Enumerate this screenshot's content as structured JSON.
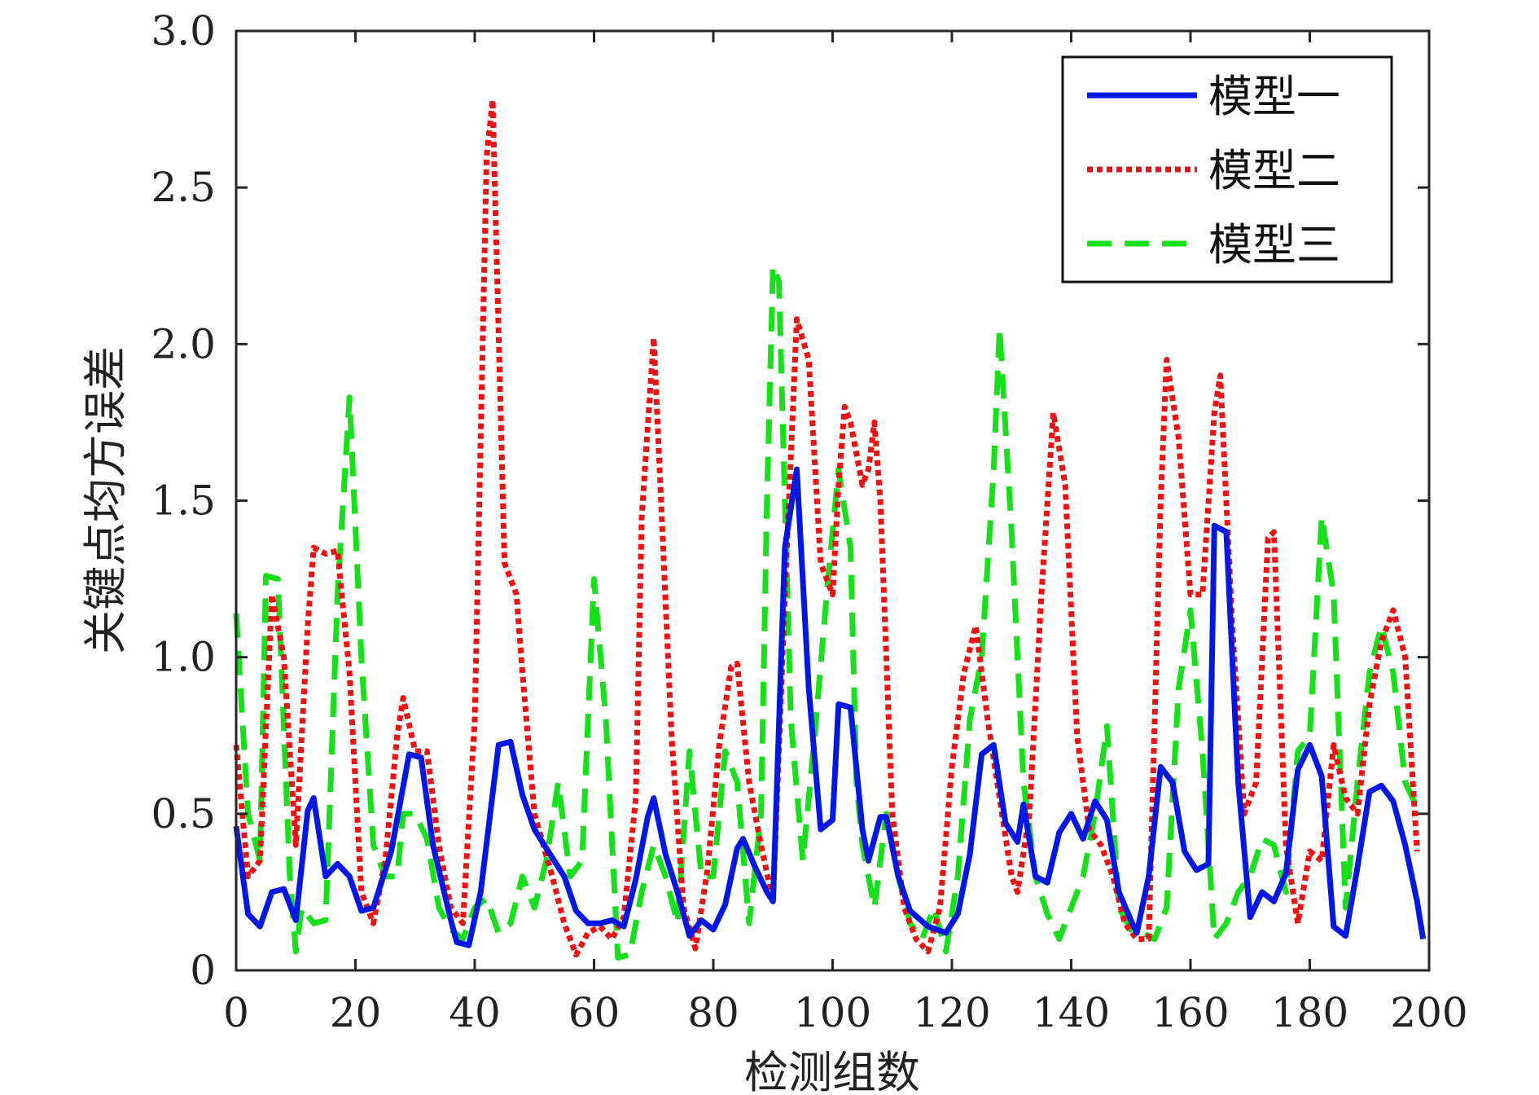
{
  "chart_data": {
    "type": "line",
    "title": "",
    "xlabel": "检测组数",
    "ylabel": "关键点均方误差",
    "xlim": [
      0,
      200
    ],
    "ylim": [
      0,
      3.0
    ],
    "xticks": [
      "0",
      "20",
      "40",
      "60",
      "80",
      "100",
      "120",
      "140",
      "160",
      "180",
      "200"
    ],
    "yticks": [
      "0",
      "0.5",
      "1.0",
      "1.5",
      "2.0",
      "2.5",
      "3.0"
    ],
    "grid": false,
    "legend_position": "top-right",
    "series": [
      {
        "name": "模型一",
        "color": "#0018e6",
        "style": "solid",
        "points": [
          [
            0,
            0.46
          ],
          [
            2,
            0.18
          ],
          [
            4,
            0.14
          ],
          [
            6,
            0.25
          ],
          [
            8,
            0.26
          ],
          [
            10,
            0.16
          ],
          [
            12,
            0.51
          ],
          [
            13,
            0.55
          ],
          [
            15,
            0.3
          ],
          [
            17,
            0.34
          ],
          [
            19,
            0.3
          ],
          [
            21,
            0.19
          ],
          [
            23,
            0.2
          ],
          [
            26,
            0.38
          ],
          [
            29,
            0.69
          ],
          [
            31,
            0.68
          ],
          [
            33,
            0.4
          ],
          [
            36,
            0.16
          ],
          [
            37,
            0.09
          ],
          [
            39,
            0.08
          ],
          [
            41,
            0.25
          ],
          [
            44,
            0.72
          ],
          [
            46,
            0.73
          ],
          [
            48,
            0.56
          ],
          [
            50,
            0.45
          ],
          [
            53,
            0.36
          ],
          [
            55,
            0.3
          ],
          [
            57,
            0.19
          ],
          [
            59,
            0.15
          ],
          [
            61,
            0.15
          ],
          [
            63,
            0.16
          ],
          [
            65,
            0.14
          ],
          [
            67,
            0.29
          ],
          [
            69,
            0.49
          ],
          [
            70,
            0.55
          ],
          [
            72,
            0.37
          ],
          [
            74,
            0.25
          ],
          [
            76,
            0.11
          ],
          [
            78,
            0.16
          ],
          [
            80,
            0.13
          ],
          [
            82,
            0.21
          ],
          [
            84,
            0.39
          ],
          [
            85,
            0.42
          ],
          [
            87,
            0.33
          ],
          [
            89,
            0.25
          ],
          [
            90,
            0.22
          ],
          [
            92,
            1.35
          ],
          [
            94,
            1.6
          ],
          [
            96,
            0.9
          ],
          [
            98,
            0.45
          ],
          [
            100,
            0.48
          ],
          [
            101,
            0.85
          ],
          [
            103,
            0.84
          ],
          [
            105,
            0.45
          ],
          [
            106,
            0.35
          ],
          [
            108,
            0.49
          ],
          [
            109,
            0.49
          ],
          [
            111,
            0.3
          ],
          [
            113,
            0.19
          ],
          [
            116,
            0.14
          ],
          [
            119,
            0.12
          ],
          [
            121,
            0.18
          ],
          [
            123,
            0.37
          ],
          [
            125,
            0.69
          ],
          [
            127,
            0.72
          ],
          [
            129,
            0.47
          ],
          [
            131,
            0.41
          ],
          [
            132,
            0.53
          ],
          [
            134,
            0.3
          ],
          [
            136,
            0.28
          ],
          [
            138,
            0.44
          ],
          [
            140,
            0.5
          ],
          [
            142,
            0.42
          ],
          [
            144,
            0.54
          ],
          [
            146,
            0.48
          ],
          [
            148,
            0.25
          ],
          [
            150,
            0.16
          ],
          [
            151,
            0.12
          ],
          [
            153,
            0.3
          ],
          [
            155,
            0.65
          ],
          [
            157,
            0.6
          ],
          [
            159,
            0.38
          ],
          [
            161,
            0.32
          ],
          [
            163,
            0.34
          ],
          [
            164,
            1.42
          ],
          [
            166,
            1.4
          ],
          [
            168,
            0.6
          ],
          [
            170,
            0.17
          ],
          [
            172,
            0.25
          ],
          [
            174,
            0.22
          ],
          [
            176,
            0.31
          ],
          [
            178,
            0.64
          ],
          [
            180,
            0.72
          ],
          [
            182,
            0.62
          ],
          [
            184,
            0.14
          ],
          [
            186,
            0.11
          ],
          [
            188,
            0.33
          ],
          [
            190,
            0.57
          ],
          [
            192,
            0.59
          ],
          [
            194,
            0.54
          ],
          [
            196,
            0.4
          ],
          [
            198,
            0.22
          ],
          [
            199,
            0.1
          ]
        ]
      },
      {
        "name": "模型二",
        "color": "#ee1111",
        "style": "dotted",
        "points": [
          [
            0,
            0.72
          ],
          [
            2,
            0.3
          ],
          [
            4,
            0.35
          ],
          [
            6,
            1.2
          ],
          [
            8,
            1.0
          ],
          [
            10,
            0.4
          ],
          [
            12,
            1.1
          ],
          [
            13,
            1.35
          ],
          [
            15,
            1.33
          ],
          [
            17,
            1.34
          ],
          [
            19,
            0.95
          ],
          [
            21,
            0.25
          ],
          [
            23,
            0.15
          ],
          [
            25,
            0.35
          ],
          [
            27,
            0.75
          ],
          [
            28,
            0.87
          ],
          [
            30,
            0.7
          ],
          [
            32,
            0.7
          ],
          [
            34,
            0.4
          ],
          [
            36,
            0.2
          ],
          [
            38,
            0.15
          ],
          [
            40,
            0.8
          ],
          [
            42,
            2.6
          ],
          [
            43,
            2.78
          ],
          [
            45,
            1.3
          ],
          [
            47,
            1.2
          ],
          [
            48,
            0.95
          ],
          [
            50,
            0.5
          ],
          [
            53,
            0.3
          ],
          [
            55,
            0.15
          ],
          [
            57,
            0.05
          ],
          [
            59,
            0.12
          ],
          [
            61,
            0.14
          ],
          [
            63,
            0.1
          ],
          [
            65,
            0.17
          ],
          [
            67,
            0.55
          ],
          [
            68,
            1.45
          ],
          [
            70,
            2.02
          ],
          [
            71,
            1.6
          ],
          [
            73,
            0.75
          ],
          [
            75,
            0.2
          ],
          [
            77,
            0.07
          ],
          [
            79,
            0.32
          ],
          [
            81,
            0.72
          ],
          [
            83,
            0.97
          ],
          [
            84,
            0.98
          ],
          [
            86,
            0.6
          ],
          [
            88,
            0.4
          ],
          [
            90,
            0.22
          ],
          [
            92,
            1.2
          ],
          [
            94,
            2.08
          ],
          [
            96,
            1.95
          ],
          [
            98,
            1.3
          ],
          [
            100,
            1.2
          ],
          [
            101,
            1.55
          ],
          [
            102,
            1.8
          ],
          [
            103,
            1.75
          ],
          [
            105,
            1.55
          ],
          [
            106,
            1.6
          ],
          [
            107,
            1.75
          ],
          [
            108,
            1.5
          ],
          [
            110,
            0.5
          ],
          [
            112,
            0.2
          ],
          [
            114,
            0.1
          ],
          [
            116,
            0.06
          ],
          [
            118,
            0.2
          ],
          [
            120,
            0.65
          ],
          [
            122,
            0.95
          ],
          [
            124,
            1.1
          ],
          [
            126,
            0.8
          ],
          [
            128,
            0.55
          ],
          [
            130,
            0.3
          ],
          [
            131,
            0.25
          ],
          [
            133,
            0.5
          ],
          [
            135,
            1.2
          ],
          [
            137,
            1.78
          ],
          [
            139,
            1.55
          ],
          [
            141,
            0.75
          ],
          [
            143,
            0.45
          ],
          [
            145,
            0.4
          ],
          [
            147,
            0.3
          ],
          [
            149,
            0.15
          ],
          [
            151,
            0.1
          ],
          [
            153,
            0.1
          ],
          [
            155,
            1.5
          ],
          [
            156,
            1.95
          ],
          [
            158,
            1.7
          ],
          [
            160,
            1.2
          ],
          [
            162,
            1.2
          ],
          [
            164,
            1.78
          ],
          [
            165,
            1.9
          ],
          [
            167,
            1.1
          ],
          [
            169,
            0.5
          ],
          [
            171,
            0.6
          ],
          [
            173,
            1.38
          ],
          [
            174,
            1.4
          ],
          [
            176,
            0.4
          ],
          [
            178,
            0.15
          ],
          [
            180,
            0.38
          ],
          [
            182,
            0.35
          ],
          [
            184,
            0.72
          ],
          [
            186,
            0.55
          ],
          [
            188,
            0.5
          ],
          [
            190,
            0.85
          ],
          [
            192,
            1.05
          ],
          [
            194,
            1.15
          ],
          [
            196,
            1.0
          ],
          [
            198,
            0.38
          ]
        ]
      },
      {
        "name": "模型三",
        "color": "#16e01a",
        "style": "dashed",
        "points": [
          [
            0,
            1.14
          ],
          [
            2,
            0.5
          ],
          [
            4,
            0.35
          ],
          [
            5,
            1.26
          ],
          [
            7,
            1.25
          ],
          [
            9,
            0.3
          ],
          [
            10,
            0.06
          ],
          [
            11,
            0.2
          ],
          [
            13,
            0.15
          ],
          [
            15,
            0.16
          ],
          [
            17,
            1.2
          ],
          [
            19,
            1.83
          ],
          [
            21,
            1.0
          ],
          [
            23,
            0.4
          ],
          [
            25,
            0.3
          ],
          [
            27,
            0.3
          ],
          [
            28,
            0.5
          ],
          [
            30,
            0.5
          ],
          [
            32,
            0.42
          ],
          [
            34,
            0.2
          ],
          [
            36,
            0.13
          ],
          [
            38,
            0.1
          ],
          [
            40,
            0.2
          ],
          [
            42,
            0.23
          ],
          [
            44,
            0.12
          ],
          [
            46,
            0.15
          ],
          [
            48,
            0.3
          ],
          [
            50,
            0.2
          ],
          [
            52,
            0.35
          ],
          [
            54,
            0.6
          ],
          [
            56,
            0.3
          ],
          [
            58,
            0.35
          ],
          [
            60,
            1.25
          ],
          [
            62,
            0.8
          ],
          [
            64,
            0.04
          ],
          [
            66,
            0.05
          ],
          [
            68,
            0.25
          ],
          [
            70,
            0.4
          ],
          [
            72,
            0.3
          ],
          [
            74,
            0.15
          ],
          [
            76,
            0.7
          ],
          [
            78,
            0.3
          ],
          [
            80,
            0.3
          ],
          [
            82,
            0.7
          ],
          [
            84,
            0.6
          ],
          [
            86,
            0.15
          ],
          [
            88,
            0.5
          ],
          [
            89,
            1.5
          ],
          [
            90,
            2.25
          ],
          [
            91,
            2.2
          ],
          [
            93,
            0.8
          ],
          [
            95,
            0.35
          ],
          [
            97,
            0.75
          ],
          [
            99,
            1.2
          ],
          [
            101,
            1.6
          ],
          [
            103,
            1.35
          ],
          [
            104,
            0.6
          ],
          [
            105,
            0.4
          ],
          [
            107,
            0.2
          ],
          [
            109,
            0.5
          ],
          [
            111,
            0.3
          ],
          [
            113,
            0.15
          ],
          [
            115,
            0.1
          ],
          [
            117,
            0.2
          ],
          [
            119,
            0.06
          ],
          [
            121,
            0.3
          ],
          [
            123,
            0.8
          ],
          [
            125,
            1.0
          ],
          [
            127,
            1.6
          ],
          [
            128,
            2.05
          ],
          [
            130,
            1.4
          ],
          [
            132,
            0.6
          ],
          [
            134,
            0.3
          ],
          [
            136,
            0.18
          ],
          [
            138,
            0.1
          ],
          [
            140,
            0.2
          ],
          [
            142,
            0.3
          ],
          [
            144,
            0.5
          ],
          [
            146,
            0.78
          ],
          [
            148,
            0.2
          ],
          [
            150,
            0.13
          ],
          [
            152,
            0.12
          ],
          [
            154,
            0.1
          ],
          [
            156,
            0.2
          ],
          [
            158,
            0.9
          ],
          [
            160,
            1.15
          ],
          [
            162,
            0.7
          ],
          [
            164,
            0.1
          ],
          [
            166,
            0.15
          ],
          [
            168,
            0.25
          ],
          [
            170,
            0.3
          ],
          [
            172,
            0.42
          ],
          [
            174,
            0.4
          ],
          [
            176,
            0.25
          ],
          [
            178,
            0.7
          ],
          [
            180,
            0.75
          ],
          [
            182,
            1.45
          ],
          [
            184,
            1.2
          ],
          [
            186,
            0.2
          ],
          [
            188,
            0.6
          ],
          [
            190,
            0.95
          ],
          [
            192,
            1.1
          ],
          [
            194,
            0.95
          ],
          [
            196,
            0.6
          ],
          [
            198,
            0.52
          ]
        ]
      }
    ]
  }
}
